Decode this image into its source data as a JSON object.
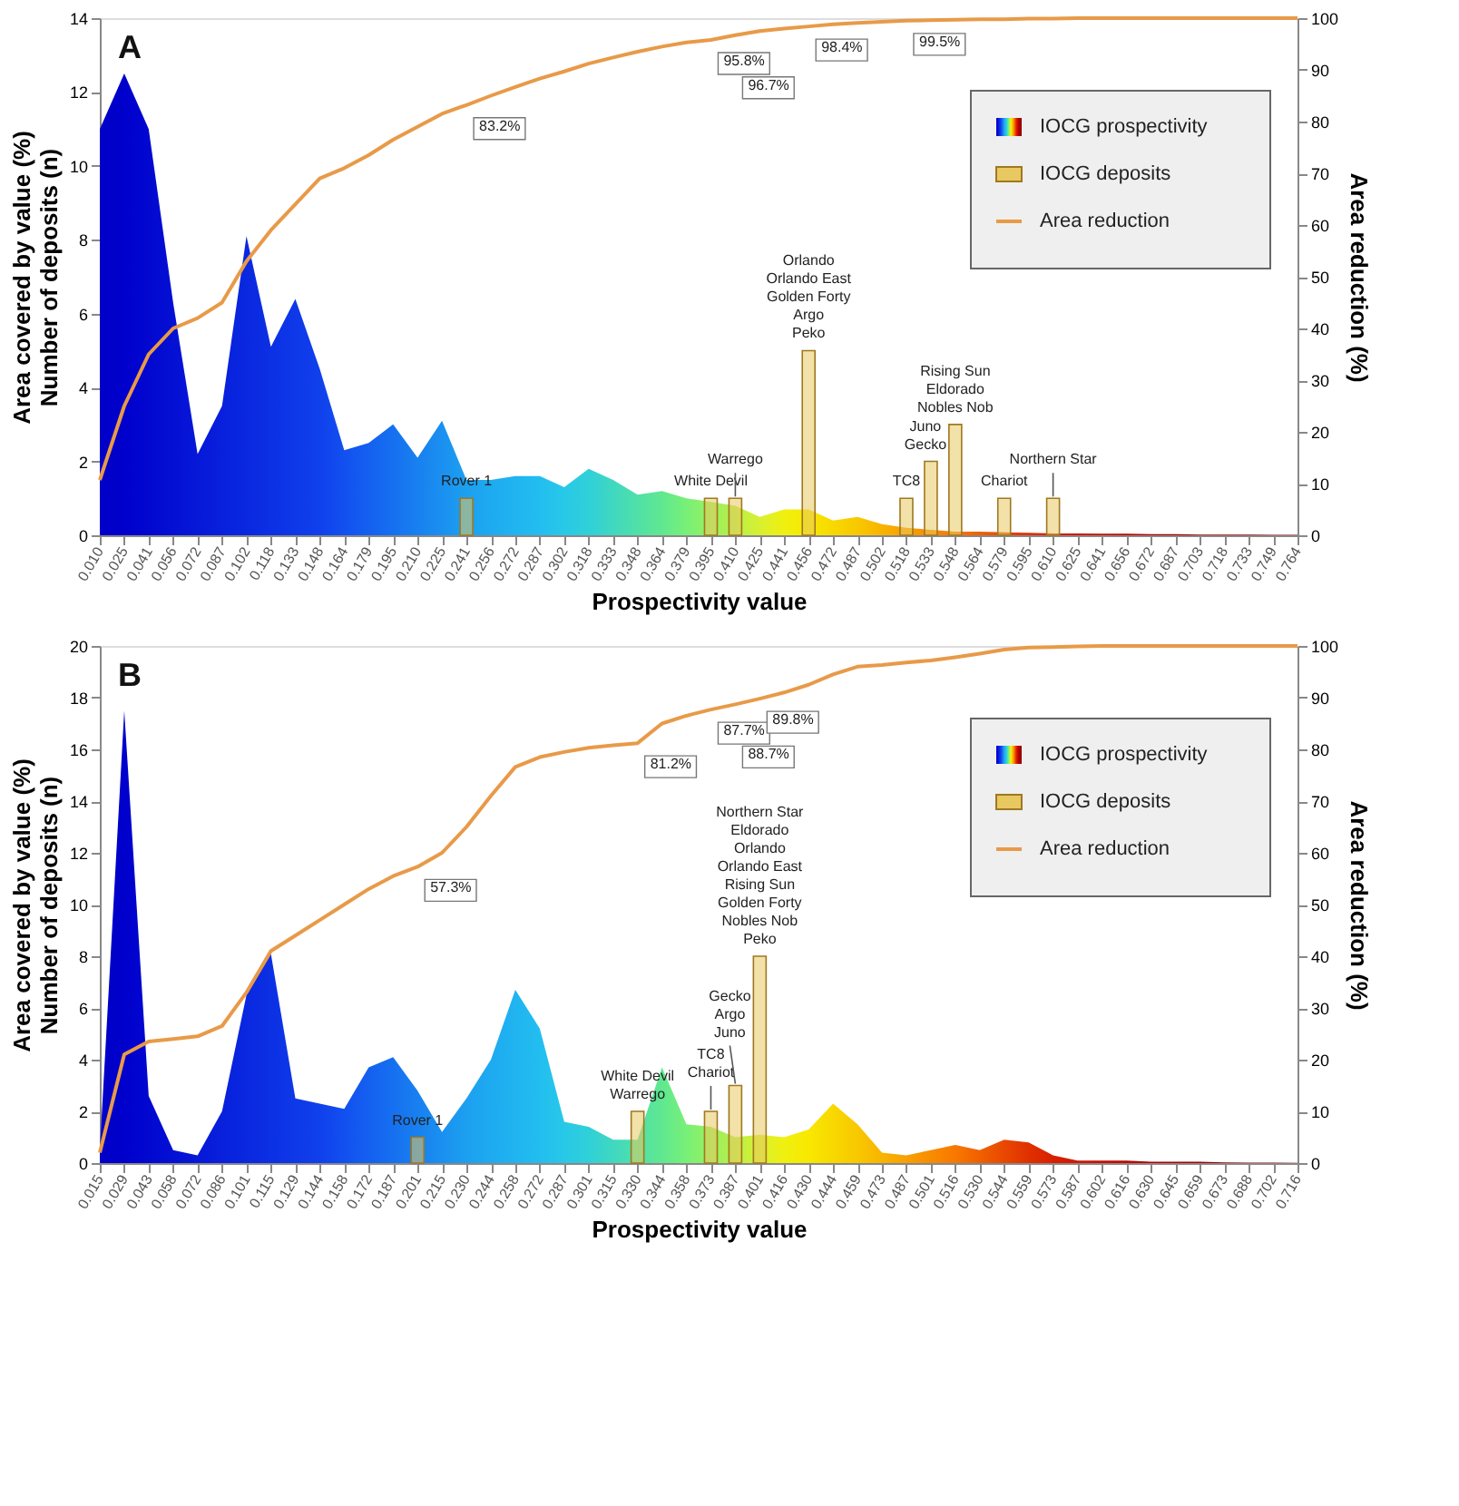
{
  "chart_data": [
    {
      "type": "area",
      "title": "A",
      "xlabel": "Prospectivity value",
      "ylabel": "Area covered by value (%)\nNumber of deposits (n)",
      "y2label": "Area reduction (%)",
      "categories": [
        "0.010",
        "0.025",
        "0.041",
        "0.056",
        "0.072",
        "0.087",
        "0.102",
        "0.118",
        "0.133",
        "0.148",
        "0.164",
        "0.179",
        "0.195",
        "0.210",
        "0.225",
        "0.241",
        "0.256",
        "0.272",
        "0.287",
        "0.302",
        "0.318",
        "0.333",
        "0.348",
        "0.364",
        "0.379",
        "0.395",
        "0.410",
        "0.425",
        "0.441",
        "0.456",
        "0.472",
        "0.487",
        "0.502",
        "0.518",
        "0.533",
        "0.548",
        "0.564",
        "0.579",
        "0.595",
        "0.610",
        "0.625",
        "0.641",
        "0.656",
        "0.672",
        "0.687",
        "0.703",
        "0.718",
        "0.733",
        "0.749",
        "0.764"
      ],
      "ylim": [
        0,
        14
      ],
      "yticks": [
        0,
        2,
        4,
        6,
        8,
        10,
        12,
        14
      ],
      "y2lim": [
        0,
        100
      ],
      "y2ticks": [
        0,
        10,
        20,
        30,
        40,
        50,
        60,
        70,
        80,
        90,
        100
      ],
      "grid": false,
      "legend": "top right",
      "series": [
        {
          "name": "IOCG prospectivity",
          "colors": [
            "#0000c8",
            "#0000cc",
            "#0208d0",
            "#0410d4",
            "#0618d8",
            "#0820dc",
            "#0a28e0",
            "#0c30e4",
            "#0e38e8",
            "#1040ec",
            "#1250f0",
            "#1460f0",
            "#1670f0",
            "#1880f0",
            "#1a90f0",
            "#1ca0f0",
            "#1eaaf0",
            "#20b4f0",
            "#22bef0",
            "#28c8e8",
            "#30d0d8",
            "#40d8c0",
            "#50e0a8",
            "#60e890",
            "#78f078",
            "#98f060",
            "#b8f048",
            "#d8f030",
            "#f0f010",
            "#f8e800",
            "#f8d800",
            "#f8c800",
            "#f8b400",
            "#f8a000",
            "#f88c00",
            "#f87800",
            "#f06000",
            "#e84800",
            "#e03000",
            "#d82000",
            "#d01800",
            "#c81000",
            "#c00800",
            "#b80000",
            "#b00000",
            "#a80000",
            "#a00000",
            "#980000",
            "#900000",
            "#880000"
          ],
          "values": [
            11.0,
            12.5,
            11.0,
            6.3,
            2.2,
            3.5,
            8.1,
            5.1,
            6.4,
            4.5,
            2.3,
            2.5,
            3.0,
            2.1,
            3.1,
            1.5,
            1.5,
            1.6,
            1.6,
            1.3,
            1.8,
            1.5,
            1.1,
            1.2,
            1.0,
            0.9,
            0.8,
            0.5,
            0.7,
            0.7,
            0.4,
            0.5,
            0.3,
            0.2,
            0.15,
            0.1,
            0.1,
            0.08,
            0.07,
            0.05,
            0.05,
            0.04,
            0.04,
            0.03,
            0.03,
            0.02,
            0.02,
            0.02,
            0.01,
            0.01
          ]
        },
        {
          "name": "IOCG deposits",
          "type": "bar",
          "color": "#e8c860",
          "values": [
            null,
            null,
            null,
            null,
            null,
            null,
            null,
            null,
            null,
            null,
            null,
            null,
            null,
            null,
            null,
            1,
            null,
            null,
            null,
            null,
            null,
            null,
            null,
            null,
            null,
            1,
            1,
            null,
            null,
            5,
            null,
            null,
            null,
            1,
            2,
            3,
            null,
            1,
            null,
            1,
            null,
            null,
            null,
            null,
            null,
            null,
            null,
            null,
            null,
            null
          ],
          "value_labels": [
            null,
            null,
            null,
            null,
            null,
            null,
            null,
            null,
            null,
            null,
            null,
            null,
            null,
            null,
            null,
            "Rover 1",
            null,
            null,
            null,
            null,
            null,
            null,
            null,
            null,
            null,
            "White Devil",
            "Warrego",
            null,
            null,
            "Orlando\nOrlando East\nGolden Forty\nArgo\nPeko",
            null,
            null,
            null,
            "TC8",
            "Juno\nGecko",
            "Rising Sun\nEldorado\nNobles Nob",
            null,
            "Chariot",
            null,
            "Northern Star",
            null,
            null,
            null,
            null,
            null,
            null,
            null,
            null,
            null,
            null
          ]
        },
        {
          "name": "Area reduction",
          "type": "line",
          "axis": "y2",
          "color": "#e89a48",
          "values": [
            10.7,
            25,
            35,
            40,
            42,
            45,
            53,
            59,
            64,
            69,
            71,
            73.5,
            76.5,
            79,
            81.5,
            83.2,
            85,
            86.7,
            88.3,
            89.7,
            91.2,
            92.4,
            93.5,
            94.5,
            95.3,
            95.8,
            96.7,
            97.5,
            98.0,
            98.4,
            98.8,
            99.1,
            99.3,
            99.5,
            99.6,
            99.7,
            99.8,
            99.8,
            99.9,
            99.9,
            100,
            100,
            100,
            100,
            100,
            100,
            100,
            100,
            100,
            100
          ],
          "value_labels": [
            null,
            null,
            null,
            null,
            null,
            null,
            null,
            null,
            null,
            null,
            null,
            null,
            null,
            null,
            null,
            "83.2%",
            null,
            null,
            null,
            null,
            null,
            null,
            null,
            null,
            null,
            "95.8%",
            "96.7%",
            null,
            null,
            "98.4%",
            null,
            null,
            null,
            "99.5%",
            null,
            null,
            null,
            null,
            null,
            null,
            null,
            null,
            null,
            null,
            null,
            null,
            null,
            null,
            null,
            null
          ]
        }
      ]
    },
    {
      "type": "area",
      "title": "B",
      "xlabel": "Prospectivity value",
      "ylabel": "Area covered by value (%)\nNumber of deposits (n)",
      "y2label": "Area reduction (%)",
      "categories": [
        "0.015",
        "0.029",
        "0.043",
        "0.058",
        "0.072",
        "0.086",
        "0.101",
        "0.115",
        "0.129",
        "0.144",
        "0.158",
        "0.172",
        "0.187",
        "0.201",
        "0.215",
        "0.230",
        "0.244",
        "0.258",
        "0.272",
        "0.287",
        "0.301",
        "0.315",
        "0.330",
        "0.344",
        "0.358",
        "0.373",
        "0.387",
        "0.401",
        "0.416",
        "0.430",
        "0.444",
        "0.459",
        "0.473",
        "0.487",
        "0.501",
        "0.516",
        "0.530",
        "0.544",
        "0.559",
        "0.573",
        "0.587",
        "0.602",
        "0.616",
        "0.630",
        "0.645",
        "0.659",
        "0.673",
        "0.688",
        "0.702",
        "0.716"
      ],
      "ylim": [
        0,
        20
      ],
      "yticks": [
        0,
        2,
        4,
        6,
        8,
        10,
        12,
        14,
        16,
        18,
        20
      ],
      "y2lim": [
        0,
        100
      ],
      "y2ticks": [
        0,
        10,
        20,
        30,
        40,
        50,
        60,
        70,
        80,
        90,
        100
      ],
      "grid": false,
      "legend": "top right",
      "series": [
        {
          "name": "IOCG prospectivity",
          "colors": [
            "#0000c8",
            "#0000cc",
            "#0208d0",
            "#0410d4",
            "#0618d8",
            "#0820dc",
            "#0a28e0",
            "#0c30e4",
            "#0e38e8",
            "#1040ec",
            "#1250f0",
            "#1460f0",
            "#1670f0",
            "#1880f0",
            "#1a90f0",
            "#1ca0f0",
            "#1eaaf0",
            "#20b4f0",
            "#22bef0",
            "#28c8e8",
            "#30d0d8",
            "#40d8c0",
            "#50e0a8",
            "#60e890",
            "#78f078",
            "#98f060",
            "#b8f048",
            "#d8f030",
            "#f0f010",
            "#f8e800",
            "#f8d800",
            "#f8c800",
            "#f8b400",
            "#f8a000",
            "#f88c00",
            "#f87800",
            "#f06000",
            "#e84800",
            "#e03000",
            "#d82000",
            "#d01800",
            "#c81000",
            "#c00800",
            "#b80000",
            "#b00000",
            "#a80000",
            "#a00000",
            "#980000",
            "#900000",
            "#880000"
          ],
          "values": [
            0.5,
            17.5,
            2.6,
            0.5,
            0.3,
            2.0,
            6.5,
            8.1,
            2.5,
            2.3,
            2.1,
            3.7,
            4.1,
            2.8,
            1.2,
            2.5,
            4.0,
            6.7,
            5.2,
            1.6,
            1.4,
            0.9,
            0.9,
            3.7,
            1.5,
            1.4,
            1.0,
            1.1,
            1.0,
            1.3,
            2.3,
            1.5,
            0.4,
            0.3,
            0.5,
            0.7,
            0.5,
            0.9,
            0.8,
            0.3,
            0.1,
            0.1,
            0.1,
            0.05,
            0.05,
            0.05,
            0.03,
            0.02,
            0.02,
            0.01
          ]
        },
        {
          "name": "IOCG deposits",
          "type": "bar",
          "color": "#e8c860",
          "values": [
            null,
            null,
            null,
            null,
            null,
            null,
            null,
            null,
            null,
            null,
            null,
            null,
            null,
            1,
            null,
            null,
            null,
            null,
            null,
            null,
            null,
            null,
            2,
            null,
            null,
            2,
            3,
            8,
            null,
            null,
            null,
            null,
            null,
            null,
            null,
            null,
            null,
            null,
            null,
            null,
            null,
            null,
            null,
            null,
            null,
            null,
            null,
            null,
            null,
            null
          ],
          "value_labels": [
            null,
            null,
            null,
            null,
            null,
            null,
            null,
            null,
            null,
            null,
            null,
            null,
            null,
            "Rover 1",
            null,
            null,
            null,
            null,
            null,
            null,
            null,
            null,
            "White Devil\nWarrego",
            null,
            null,
            "TC8\nChariot",
            "Gecko\nArgo\nJuno",
            "Northern Star\nEldorado\nOrlando\nOrlando East\nRising Sun\nGolden Forty\nNobles Nob\nPeko",
            null,
            null,
            null,
            null,
            null,
            null,
            null,
            null,
            null,
            null,
            null,
            null,
            null,
            null,
            null,
            null,
            null,
            null,
            null,
            null,
            null,
            null
          ]
        },
        {
          "name": "Area reduction",
          "type": "line",
          "axis": "y2",
          "color": "#e89a48",
          "values": [
            2,
            21,
            23.5,
            24,
            24.5,
            26.5,
            33,
            41,
            44,
            47,
            50,
            53,
            55.5,
            57.3,
            60,
            65,
            71,
            76.6,
            78.5,
            79.5,
            80.3,
            80.8,
            81.2,
            85,
            86.5,
            87.7,
            88.7,
            89.8,
            91,
            92.5,
            94.5,
            96,
            96.3,
            96.8,
            97.2,
            97.8,
            98.5,
            99.3,
            99.7,
            99.8,
            99.9,
            100,
            100,
            100,
            100,
            100,
            100,
            100,
            100,
            100
          ],
          "value_labels": [
            null,
            null,
            null,
            null,
            null,
            null,
            null,
            null,
            null,
            null,
            null,
            null,
            null,
            "57.3%",
            null,
            null,
            null,
            null,
            null,
            null,
            null,
            null,
            "81.2%",
            null,
            null,
            "87.7%",
            "88.7%",
            "89.8%",
            null,
            null,
            null,
            null,
            null,
            null,
            null,
            null,
            null,
            null,
            null,
            null,
            null,
            null,
            null,
            null,
            null,
            null,
            null,
            null,
            null,
            null
          ]
        }
      ]
    }
  ]
}
